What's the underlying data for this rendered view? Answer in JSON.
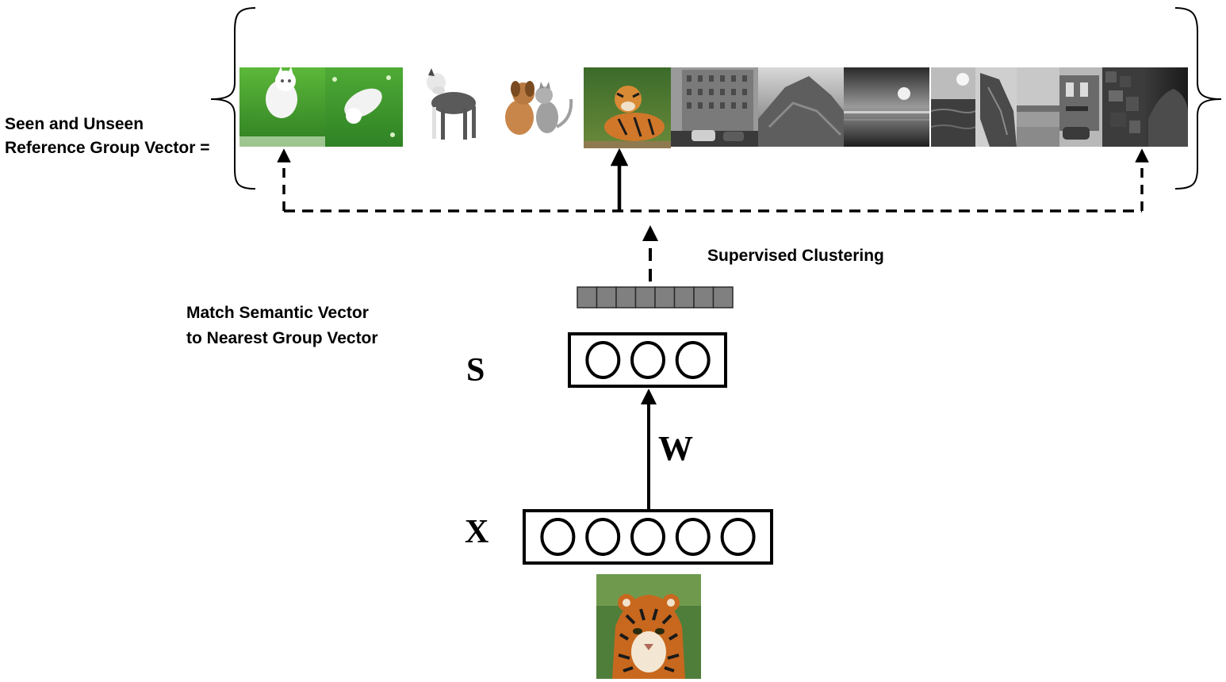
{
  "reference_group": {
    "label_line1": "Seen and Unseen",
    "label_line2": "Reference  Group Vector ="
  },
  "reference_images": [
    {
      "name": "white-kitten-on-grass-thumbnail"
    },
    {
      "name": "white-kitten-jumping-thumbnail"
    },
    {
      "name": "pit-bull-dog-thumbnail"
    },
    {
      "name": "puppy-and-cat-thumbnail"
    },
    {
      "name": "tiger-lying-thumbnail"
    },
    {
      "name": "street-buildings-grayscale-thumbnail"
    },
    {
      "name": "rocky-hill-grayscale-thumbnail"
    },
    {
      "name": "sunset-sea-grayscale-thumbnail"
    },
    {
      "name": "ocean-grayscale-thumbnail"
    },
    {
      "name": "rock-cliff-grayscale-thumbnail"
    },
    {
      "name": "beach-grayscale-thumbnail"
    },
    {
      "name": "storefront-street-grayscale-thumbnail"
    },
    {
      "name": "blurry-texture-grayscale-thumbnail"
    },
    {
      "name": "dark-rock-grayscale-thumbnail"
    }
  ],
  "annotations": {
    "supervised_clustering": "Supervised Clustering",
    "match_line1": "Match Semantic Vector",
    "match_line2": "to Nearest Group Vector"
  },
  "layers": {
    "semantic_label": "S",
    "weights_label": "W",
    "input_label": "X",
    "semantic_units": 3,
    "input_units": 5,
    "group_vector_cells": 8
  },
  "colors": {
    "ink": "#000000",
    "group_cell": "#808080",
    "group_cell_border": "#2b2b2b",
    "grass": "#3f9b2e",
    "tiger_orange": "#c9681e"
  }
}
